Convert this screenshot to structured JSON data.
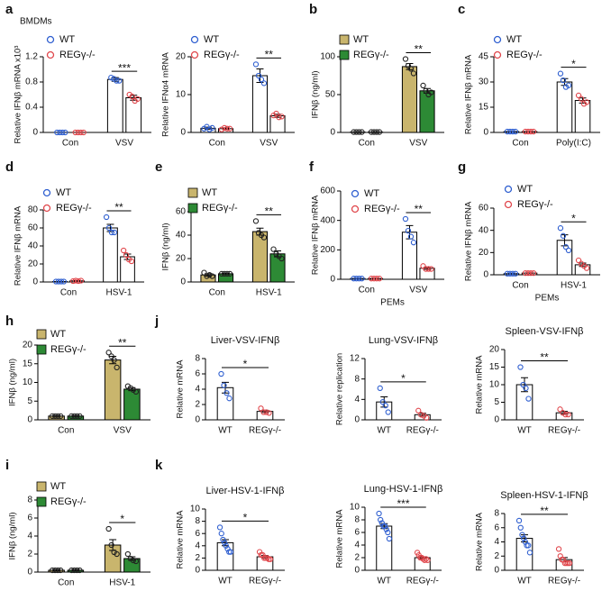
{
  "chart_data": [
    {
      "type": "bar",
      "panel": "a",
      "label": "BMDMs",
      "ylabel": "Relative IFNβ mRNA x10³",
      "categories": [
        "Con",
        "VSV"
      ],
      "ylim": [
        0,
        1.2
      ],
      "yticks": [
        0,
        0.4,
        0.8,
        1.2
      ],
      "significance": "***",
      "legend_marker": "circle",
      "series": [
        {
          "name": "WT",
          "color": "#ffffff",
          "point_color": "#2f5fd0",
          "values": [
            0,
            0.84
          ],
          "errors": [
            0,
            0.03
          ],
          "points": [
            [
              0,
              0,
              0,
              0
            ],
            [
              0.87,
              0.85,
              0.82,
              0.82
            ]
          ]
        },
        {
          "name": "REGγ-/-",
          "color": "#ffffff",
          "point_color": "#e0474c",
          "values": [
            0,
            0.55
          ],
          "errors": [
            0,
            0.04
          ],
          "points": [
            [
              0,
              0,
              0,
              0
            ],
            [
              0.6,
              0.57,
              0.5,
              0.53
            ]
          ]
        }
      ]
    },
    {
      "type": "bar",
      "ylabel": "Relative IFNα4 mRNA",
      "categories": [
        "Con",
        "VSV"
      ],
      "ylim": [
        0,
        20
      ],
      "yticks": [
        0,
        10,
        20
      ],
      "significance": "**",
      "legend_marker": "circle",
      "series": [
        {
          "name": "WT",
          "color": "#ffffff",
          "point_color": "#2f5fd0",
          "values": [
            1.1,
            15
          ],
          "errors": [
            0.3,
            1.8
          ],
          "points": [
            [
              1,
              1.5,
              0.8,
              1.2
            ],
            [
              18,
              15,
              14,
              13
            ]
          ]
        },
        {
          "name": "REGγ-/-",
          "color": "#ffffff",
          "point_color": "#e0474c",
          "values": [
            1,
            4.4
          ],
          "errors": [
            0.2,
            0.4
          ],
          "points": [
            [
              0.8,
              1.2,
              1,
              1
            ],
            [
              4.5,
              5,
              4,
              4.2
            ]
          ]
        }
      ]
    },
    {
      "type": "bar",
      "panel": "b",
      "ylabel": "IFNβ (ng/ml)",
      "categories": [
        "Con",
        "VSV"
      ],
      "ylim": [
        0,
        100
      ],
      "yticks": [
        0,
        50,
        100
      ],
      "significance": "**",
      "legend_marker": "square",
      "series": [
        {
          "name": "WT",
          "color": "#c9b56d",
          "point_color": "#222222",
          "values": [
            0.5,
            87
          ],
          "errors": [
            0,
            4
          ],
          "points": [
            [
              0.5,
              0.5,
              0.5,
              0.5
            ],
            [
              97,
              88,
              84,
              78
            ]
          ]
        },
        {
          "name": "REGγ-/-",
          "color": "#2d8a35",
          "point_color": "#222222",
          "values": [
            0.5,
            55
          ],
          "errors": [
            0,
            3
          ],
          "points": [
            [
              0.5,
              0.5,
              0.5,
              0.5
            ],
            [
              62,
              55,
              50,
              53
            ]
          ]
        }
      ]
    },
    {
      "type": "bar",
      "panel": "c",
      "ylabel": "Relative IFNβ mRNA",
      "categories": [
        "Con",
        "Poly(I:C)"
      ],
      "ylim": [
        0,
        45
      ],
      "yticks": [
        0,
        15,
        30,
        45
      ],
      "significance": "*",
      "legend_marker": "circle",
      "series": [
        {
          "name": "WT",
          "color": "#ffffff",
          "point_color": "#2f5fd0",
          "values": [
            0.5,
            30
          ],
          "errors": [
            0,
            2
          ],
          "points": [
            [
              0.5,
              0.5,
              0.5,
              0.5
            ],
            [
              35,
              31,
              27,
              28
            ]
          ]
        },
        {
          "name": "REGγ-/-",
          "color": "#ffffff",
          "point_color": "#e0474c",
          "values": [
            0.5,
            19
          ],
          "errors": [
            0,
            1.5
          ],
          "points": [
            [
              0.5,
              0.5,
              0.5,
              0.5
            ],
            [
              22,
              20,
              17,
              18
            ]
          ]
        }
      ]
    },
    {
      "type": "bar",
      "panel": "d",
      "ylabel": "Relative IFNβ mRNA",
      "categories": [
        "Con",
        "HSV-1"
      ],
      "ylim": [
        0,
        80
      ],
      "yticks": [
        0,
        20,
        40,
        60,
        80
      ],
      "significance": "**",
      "legend_marker": "circle",
      "series": [
        {
          "name": "WT",
          "color": "#ffffff",
          "point_color": "#2f5fd0",
          "values": [
            0.5,
            60
          ],
          "errors": [
            0,
            4
          ],
          "points": [
            [
              0.5,
              0.5,
              0.5,
              0.5
            ],
            [
              72,
              60,
              55,
              55
            ]
          ]
        },
        {
          "name": "REGγ-/-",
          "color": "#ffffff",
          "point_color": "#e0474c",
          "values": [
            1.25,
            28
          ],
          "errors": [
            0.2,
            3
          ],
          "points": [
            [
              1,
              1.5,
              1,
              1.5
            ],
            [
              35,
              30,
              25,
              23
            ]
          ]
        }
      ]
    },
    {
      "type": "bar",
      "panel": "e",
      "ylabel": "IFNβ (ng/ml)",
      "categories": [
        "Con",
        "HSV-1"
      ],
      "ylim": [
        0,
        60
      ],
      "yticks": [
        0,
        20,
        40,
        60
      ],
      "significance": "**",
      "legend_marker": "square",
      "series": [
        {
          "name": "WT",
          "color": "#c9b56d",
          "point_color": "#222222",
          "values": [
            6,
            43
          ],
          "errors": [
            1,
            3
          ],
          "points": [
            [
              8,
              5,
              6,
              5
            ],
            [
              52,
              42,
              40,
              38
            ]
          ]
        },
        {
          "name": "REGγ-/-",
          "color": "#2d8a35",
          "point_color": "#222222",
          "values": [
            7,
            24
          ],
          "errors": [
            0.3,
            2.5
          ],
          "points": [
            [
              7,
              7,
              7,
              7
            ],
            [
              28,
              24,
              22,
              20
            ]
          ]
        }
      ]
    },
    {
      "type": "bar",
      "panel": "f",
      "ylabel": "Relative IFNβ mRNA",
      "xlabel": "PEMs",
      "categories": [
        "Con",
        "VSV"
      ],
      "ylim": [
        0,
        600
      ],
      "yticks": [
        0,
        200,
        400,
        600
      ],
      "significance": "**",
      "legend_marker": "circle",
      "series": [
        {
          "name": "WT",
          "color": "#ffffff",
          "point_color": "#2f5fd0",
          "values": [
            5,
            320
          ],
          "errors": [
            0,
            45
          ],
          "points": [
            [
              5,
              5,
              5,
              5
            ],
            [
              410,
              330,
              290,
              250
            ]
          ]
        },
        {
          "name": "REGγ-/-",
          "color": "#ffffff",
          "point_color": "#e0474c",
          "values": [
            5,
            75
          ],
          "errors": [
            0,
            8
          ],
          "points": [
            [
              5,
              5,
              5,
              5
            ],
            [
              90,
              70,
              70,
              70
            ]
          ]
        }
      ]
    },
    {
      "type": "bar",
      "panel": "g",
      "ylabel": "Relative IFNβ mRNA",
      "xlabel": "PEMs",
      "categories": [
        "Con",
        "HSV-1"
      ],
      "ylim": [
        0,
        60
      ],
      "yticks": [
        0,
        20,
        40,
        60
      ],
      "significance": "*",
      "legend_marker": "circle",
      "series": [
        {
          "name": "WT",
          "color": "#ffffff",
          "point_color": "#2f5fd0",
          "values": [
            1,
            31
          ],
          "errors": [
            0,
            5
          ],
          "points": [
            [
              1,
              1,
              1,
              1
            ],
            [
              42,
              35,
              25,
              22
            ]
          ]
        },
        {
          "name": "REGγ-/-",
          "color": "#ffffff",
          "point_color": "#e0474c",
          "values": [
            1.5,
            9
          ],
          "errors": [
            0,
            1.5
          ],
          "points": [
            [
              1.5,
              1.5,
              1.5,
              1.5
            ],
            [
              13,
              10,
              8,
              6
            ]
          ]
        }
      ]
    },
    {
      "type": "bar",
      "panel": "h",
      "ylabel": "IFNβ (ng/ml)",
      "categories": [
        "Con",
        "VSV"
      ],
      "ylim": [
        0,
        20
      ],
      "yticks": [
        0,
        5,
        10,
        15,
        20
      ],
      "significance": "**",
      "legend_marker": "square",
      "series": [
        {
          "name": "WT",
          "color": "#c9b56d",
          "point_color": "#222222",
          "values": [
            1,
            16
          ],
          "errors": [
            0.1,
            1
          ],
          "points": [
            [
              1,
              1,
              1,
              1
            ],
            [
              18,
              17,
              16,
              14
            ]
          ]
        },
        {
          "name": "REGγ-/-",
          "color": "#2d8a35",
          "point_color": "#222222",
          "values": [
            1,
            8.2
          ],
          "errors": [
            0.1,
            0.4
          ],
          "points": [
            [
              1,
              1,
              1,
              1
            ],
            [
              9,
              8.5,
              8,
              7.5
            ]
          ]
        }
      ]
    },
    {
      "type": "bar",
      "panel": "j",
      "title": "Liver-VSV-IFNβ",
      "ylabel": "Relative mRNA",
      "categories": [
        "WT",
        "REGγ-/-"
      ],
      "ylim": [
        0,
        8
      ],
      "yticks": [
        0,
        2,
        4,
        6,
        8
      ],
      "significance": "*",
      "series": [
        {
          "color": "#ffffff",
          "point_colors": [
            "#2f5fd0",
            "#e0474c"
          ],
          "values": [
            4.2,
            1.1
          ],
          "errors": [
            0.7,
            0.15
          ],
          "points": [
            [
              6,
              4.5,
              3.5,
              2.8
            ],
            [
              1.5,
              1,
              1,
              0.9
            ]
          ]
        }
      ]
    },
    {
      "type": "bar",
      "title": "Lung-VSV-IFNβ",
      "ylabel": "Relative replication",
      "categories": [
        "WT",
        "REGγ-/-"
      ],
      "ylim": [
        0,
        12
      ],
      "yticks": [
        0,
        4,
        8,
        12
      ],
      "significance": "*",
      "series": [
        {
          "color": "#ffffff",
          "point_colors": [
            "#2f5fd0",
            "#e0474c"
          ],
          "values": [
            3.5,
            1
          ],
          "errors": [
            1,
            0.3
          ],
          "points": [
            [
              6.2,
              3.5,
              2.8,
              1.5
            ],
            [
              1.8,
              1,
              0.8,
              0.4
            ]
          ]
        }
      ]
    },
    {
      "type": "bar",
      "title": "Spleen-VSV-IFNβ",
      "ylabel": "Relative mRNA",
      "categories": [
        "WT",
        "REGγ-/-"
      ],
      "ylim": [
        0,
        20
      ],
      "yticks": [
        0,
        5,
        10,
        15,
        20
      ],
      "significance": "**",
      "series": [
        {
          "color": "#ffffff",
          "point_colors": [
            "#2f5fd0",
            "#e0474c"
          ],
          "values": [
            10,
            2
          ],
          "errors": [
            2,
            0.4
          ],
          "points": [
            [
              15,
              10,
              9,
              6
            ],
            [
              3,
              2,
              1.5,
              1.5
            ]
          ]
        }
      ]
    },
    {
      "type": "bar",
      "panel": "i",
      "ylabel": "IFNβ (ng/ml)",
      "categories": [
        "Con",
        "HSV-1"
      ],
      "ylim": [
        0,
        8
      ],
      "yticks": [
        0,
        2,
        4,
        6,
        8
      ],
      "significance": "*",
      "legend_marker": "square",
      "series": [
        {
          "name": "WT",
          "color": "#c9b56d",
          "point_color": "#222222",
          "values": [
            0.2,
            3
          ],
          "errors": [
            0.05,
            0.6
          ],
          "points": [
            [
              0.2,
              0.2,
              0.2,
              0.2
            ],
            [
              4.8,
              3,
              2.2,
              2
            ]
          ]
        },
        {
          "name": "REGγ-/-",
          "color": "#2d8a35",
          "point_color": "#222222",
          "values": [
            0.2,
            1.5
          ],
          "errors": [
            0.05,
            0.2
          ],
          "points": [
            [
              0.2,
              0.2,
              0.2,
              0.2
            ],
            [
              2,
              1.5,
              1.3,
              1.2
            ]
          ]
        }
      ]
    },
    {
      "type": "bar",
      "panel": "k",
      "title": "Liver-HSV-1-IFNβ",
      "ylabel": "Relative mRNA",
      "categories": [
        "WT",
        "REGγ-/-"
      ],
      "ylim": [
        0,
        10
      ],
      "yticks": [
        0,
        2,
        4,
        6,
        8,
        10
      ],
      "significance": "*",
      "series": [
        {
          "color": "#ffffff",
          "point_colors": [
            "#2f5fd0",
            "#e0474c"
          ],
          "values": [
            4.5,
            2.2
          ],
          "errors": [
            0.5,
            0.2
          ],
          "points": [
            [
              7,
              6,
              5,
              4.5,
              4,
              3.5,
              3,
              3
            ],
            [
              3,
              2.5,
              2.5,
              2,
              2,
              2,
              1.8,
              1.8
            ]
          ]
        }
      ]
    },
    {
      "type": "bar",
      "title": "Lung-HSV-1-IFNβ",
      "ylabel": "Relative mRNA",
      "categories": [
        "WT",
        "REGγ-/-"
      ],
      "ylim": [
        0,
        10
      ],
      "yticks": [
        0,
        2,
        4,
        6,
        8,
        10
      ],
      "significance": "***",
      "series": [
        {
          "color": "#ffffff",
          "point_colors": [
            "#2f5fd0",
            "#e0474c"
          ],
          "values": [
            7,
            2
          ],
          "errors": [
            0.4,
            0.15
          ],
          "points": [
            [
              9,
              8,
              7.5,
              7,
              7,
              6.5,
              6,
              5
            ],
            [
              2.8,
              2.4,
              2,
              2,
              1.8,
              1.6,
              1.8,
              1.6
            ]
          ]
        }
      ]
    },
    {
      "type": "bar",
      "title": "Spleen-HSV-1-IFNβ",
      "ylabel": "Relative mRNA",
      "categories": [
        "WT",
        "REGγ-/-"
      ],
      "ylim": [
        0,
        8
      ],
      "yticks": [
        0,
        2,
        4,
        6,
        8
      ],
      "significance": "**",
      "series": [
        {
          "color": "#ffffff",
          "point_colors": [
            "#2f5fd0",
            "#e0474c"
          ],
          "values": [
            4.5,
            1.5
          ],
          "errors": [
            0.5,
            0.3
          ],
          "points": [
            [
              7,
              6,
              5,
              4.5,
              4,
              3.5,
              3.5,
              2.5
            ],
            [
              3,
              2,
              1.5,
              1.5,
              1,
              1,
              1,
              1
            ]
          ]
        }
      ]
    }
  ]
}
